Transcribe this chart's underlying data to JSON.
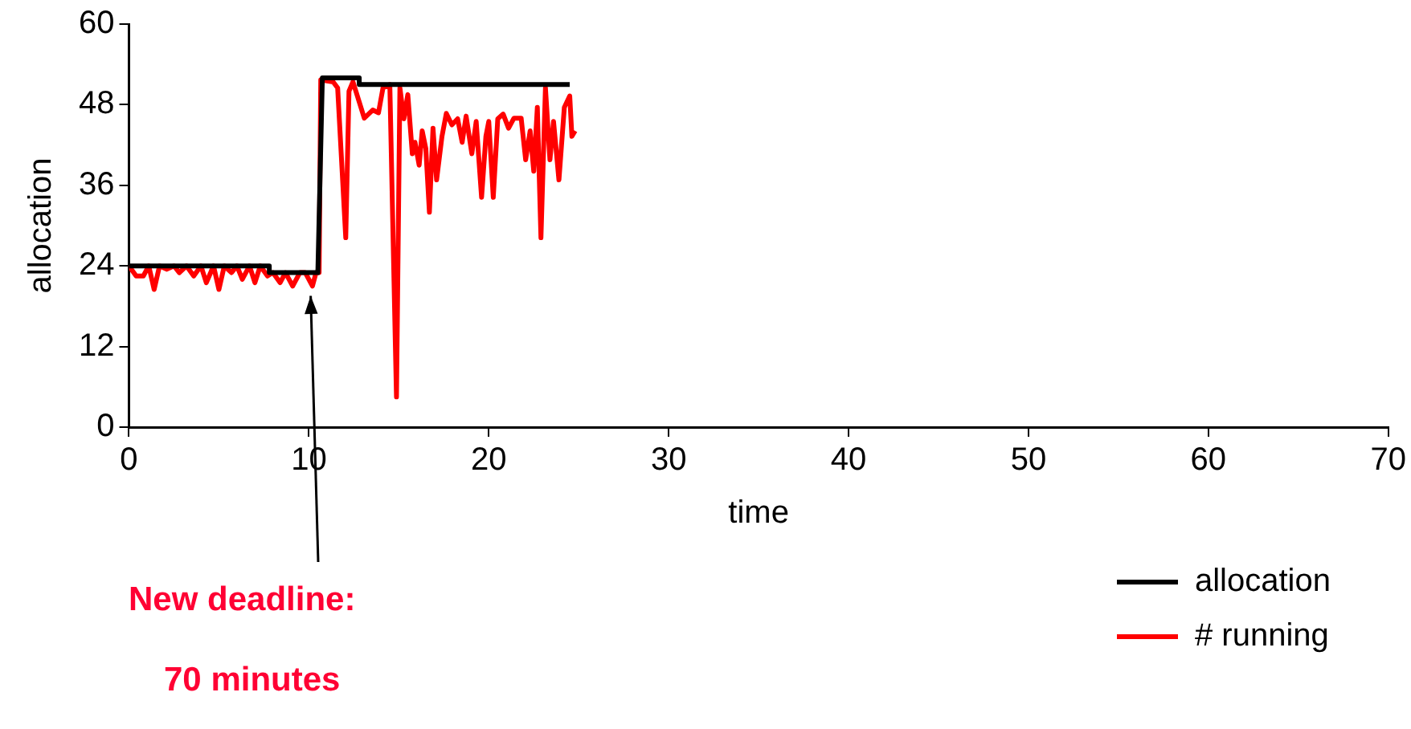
{
  "chart_data": {
    "type": "line",
    "xlabel": "time",
    "ylabel": "allocation",
    "xlim": [
      0,
      70
    ],
    "xticks": [
      0,
      10,
      20,
      30,
      40,
      50,
      60,
      70
    ],
    "ylim": [
      0,
      60
    ],
    "yticks": [
      0,
      12,
      24,
      36,
      48,
      60
    ],
    "grid": false,
    "legend": "bottom right",
    "marker": "none",
    "line_style": "solid",
    "annotations": [
      {
        "text": "New deadline:",
        "x": 10.1,
        "y": 20.5
      },
      "70 minutes"
    ],
    "series": [
      {
        "name": "allocation",
        "color": "#000000",
        "x": [
          0,
          7.8,
          7.8,
          10.5,
          10.75,
          12.8,
          12.8,
          24.5
        ],
        "values": [
          24,
          24,
          23,
          23,
          52,
          52,
          51,
          51
        ]
      },
      {
        "name": "# running",
        "color": "#ff0000",
        "x": [
          0,
          0.4,
          0.8,
          1.1,
          1.4,
          1.7,
          2.1,
          2.5,
          2.8,
          3.2,
          3.6,
          4.0,
          4.3,
          4.7,
          5.0,
          5.3,
          5.7,
          6.0,
          6.3,
          6.7,
          7.0,
          7.3,
          7.7,
          8.0,
          8.4,
          8.7,
          9.1,
          9.5,
          9.8,
          10.2,
          10.4,
          10.57,
          10.66,
          11.35,
          11.6,
          12.05,
          12.23,
          12.45,
          13.08,
          13.55,
          13.87,
          14.12,
          14.5,
          14.87,
          15.06,
          15.28,
          15.5,
          15.75,
          15.9,
          16.13,
          16.3,
          16.5,
          16.7,
          16.9,
          17.1,
          17.4,
          17.64,
          17.95,
          18.27,
          18.52,
          18.74,
          19.06,
          19.3,
          19.6,
          19.84,
          20.0,
          20.25,
          20.5,
          20.8,
          21.1,
          21.4,
          21.8,
          22.05,
          22.3,
          22.5,
          22.7,
          22.9,
          23.15,
          23.4,
          23.6,
          23.9,
          24.2,
          24.5,
          24.62,
          24.8
        ],
        "values": [
          24,
          22.5,
          22.5,
          24,
          20.5,
          24,
          23.5,
          24,
          23,
          24,
          22.5,
          24,
          21.5,
          24,
          20.5,
          24,
          23,
          24,
          22,
          24,
          21.5,
          24,
          22.5,
          23,
          21.5,
          23,
          21,
          23,
          23,
          21,
          23,
          23,
          51.7,
          51.4,
          50.5,
          28.2,
          50,
          51.4,
          46,
          47.2,
          46.8,
          50.5,
          51,
          4.5,
          50.5,
          45.9,
          49.5,
          40.7,
          42.4,
          39,
          44.1,
          41.5,
          32,
          44.5,
          36.8,
          43.3,
          46.7,
          45,
          45.9,
          42.4,
          46.3,
          40.7,
          45.5,
          34.2,
          43.3,
          45.5,
          34.2,
          45.9,
          46.6,
          44.5,
          46,
          46,
          39.8,
          44.1,
          38.1,
          47.6,
          28.2,
          50.5,
          39.8,
          45.5,
          36.8,
          47.6,
          49.3,
          43.3,
          44.1
        ]
      }
    ]
  }
}
